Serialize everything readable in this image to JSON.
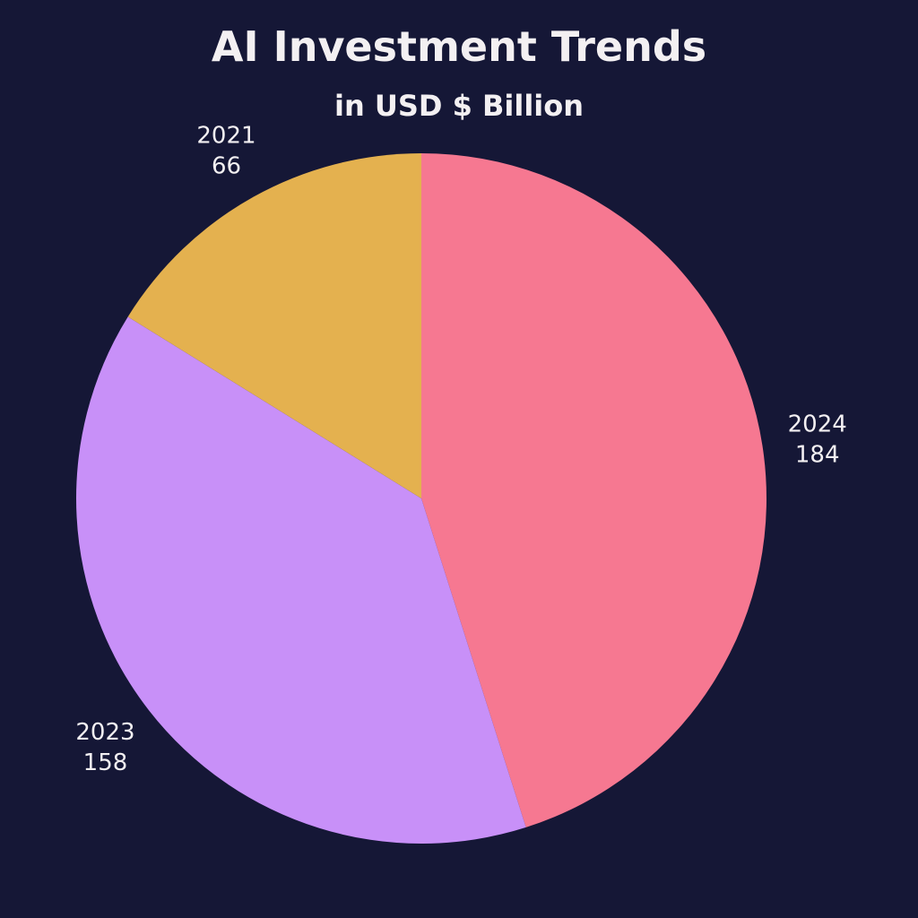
{
  "colors": {
    "background": "#151736",
    "text": "#F3F0F2",
    "slice_2024": "#F67891",
    "slice_2023": "#C890F8",
    "slice_2021": "#E4B14F"
  },
  "chart_data": {
    "type": "pie",
    "title": "AI Investment Trends",
    "subtitle": "in USD $ Billion",
    "slices": [
      {
        "label": "2024",
        "value": 184,
        "color": "#F67891"
      },
      {
        "label": "2023",
        "value": 158,
        "color": "#C890F8"
      },
      {
        "label": "2021",
        "value": 66,
        "color": "#E4B14F"
      }
    ],
    "start_angle": "12 o'clock",
    "direction": "clockwise",
    "legend": "none",
    "labels_outside": true
  }
}
